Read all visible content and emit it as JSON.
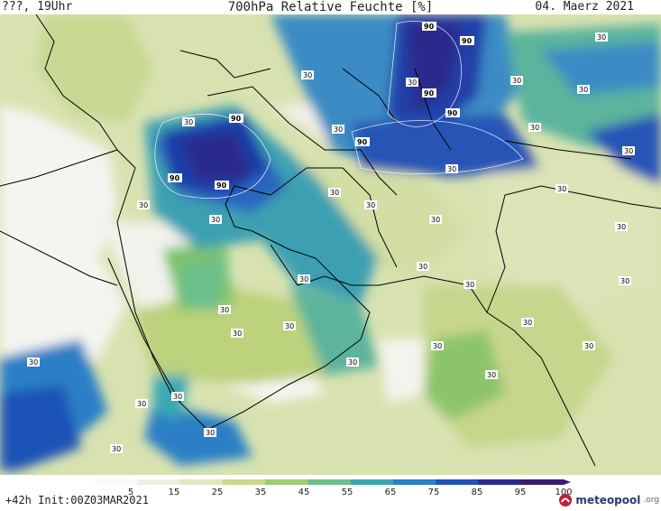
{
  "header": {
    "left": "???, 19Uhr",
    "center": "700hPa Relative Feuchte [%]",
    "right": "04. Maerz 2021"
  },
  "footer": {
    "left": "+42h Init:00Z03MAR2021",
    "logo_name": "meteopool",
    "logo_tld": ".org"
  },
  "colorbar": {
    "ticks": [
      "5",
      "15",
      "25",
      "35",
      "45",
      "55",
      "65",
      "75",
      "85",
      "95",
      "100"
    ],
    "colors": [
      "#fafafa",
      "#eef0e4",
      "#e0e6c2",
      "#c8d890",
      "#a2cc6e",
      "#6cc08c",
      "#3aa8b2",
      "#2a7fc6",
      "#1f52b6",
      "#2a2a8c",
      "#3a1a6e"
    ]
  },
  "map": {
    "contour_labels": {
      "value30": "30",
      "value90": "90"
    }
  }
}
